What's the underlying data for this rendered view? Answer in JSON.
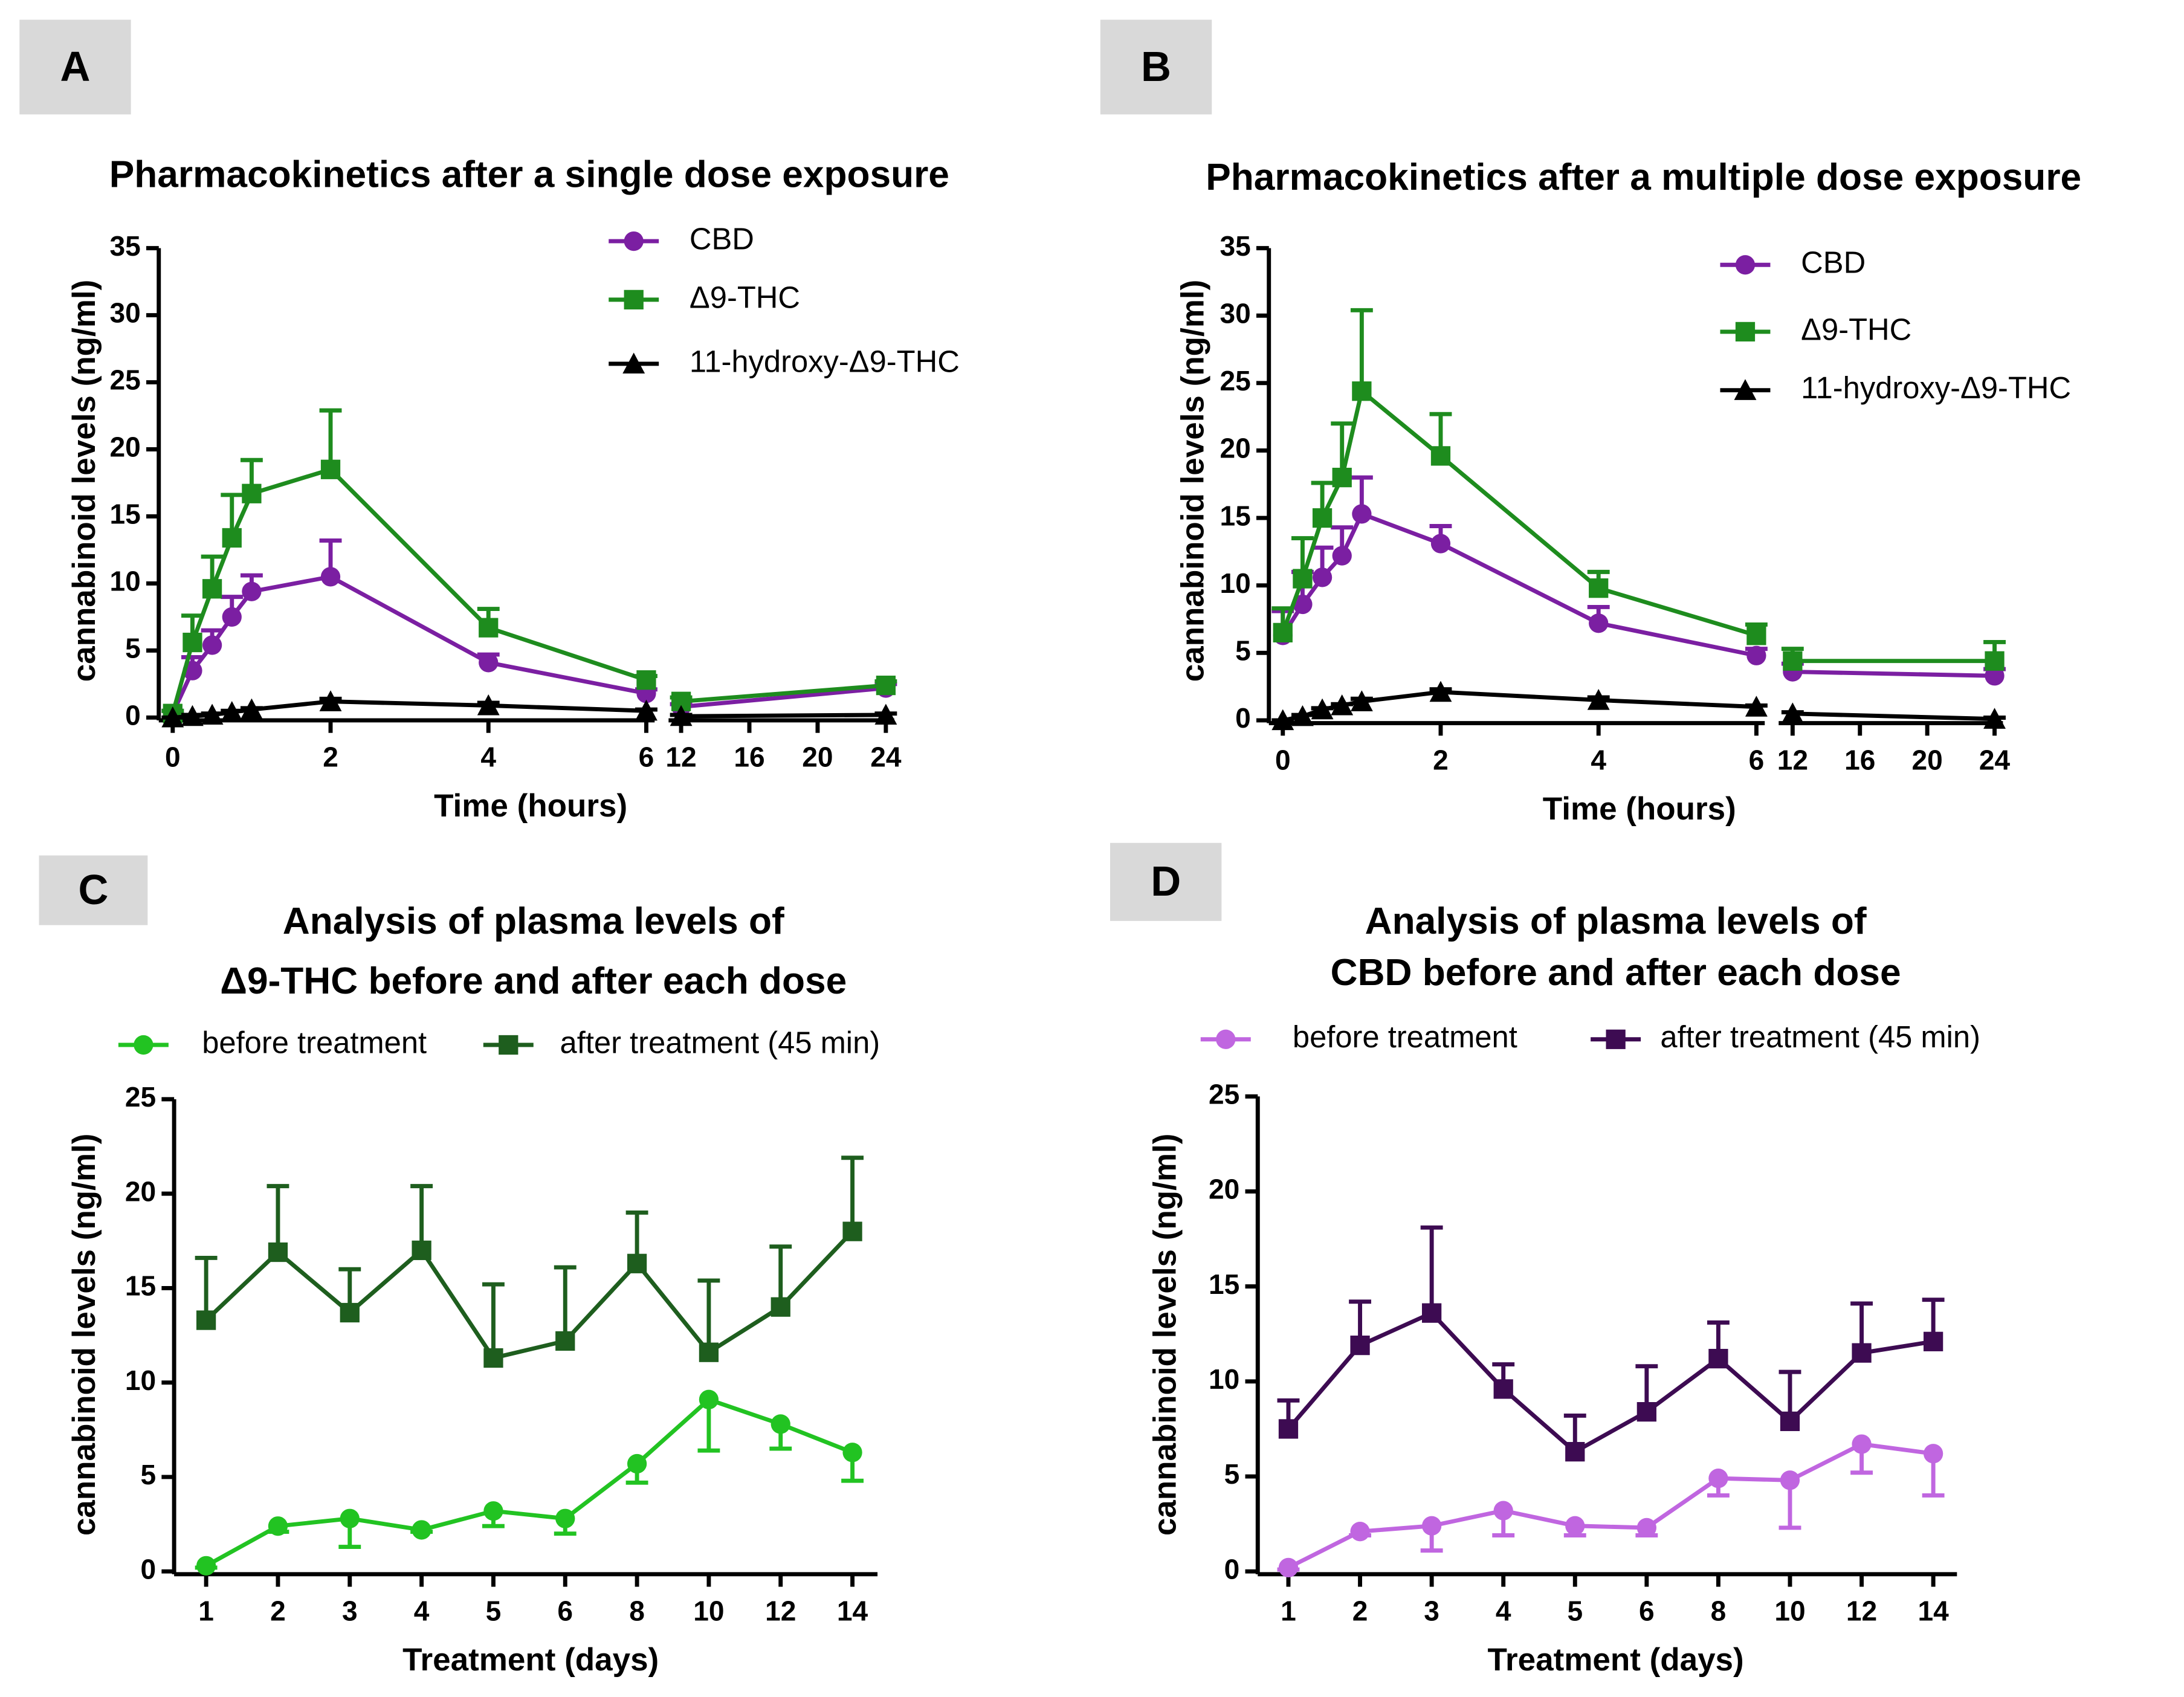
{
  "chart_data": [
    {
      "type": "line",
      "panel": "A",
      "title": "Pharmacokinetics after a single dose exposure",
      "x_label": "Time (hours)",
      "y_label": "cannabinoid levels (ng/ml)",
      "x": [
        0,
        0.25,
        0.5,
        0.75,
        1,
        2,
        4,
        6,
        12,
        24
      ],
      "xsegments": [
        {
          "xlim": [
            0,
            6
          ],
          "xticks": [
            0,
            2,
            4,
            6
          ]
        },
        {
          "xlim": [
            12,
            24
          ],
          "xticks": [
            12,
            16,
            20,
            24
          ]
        }
      ],
      "ylim": [
        0,
        35
      ],
      "yticks": [
        0,
        5,
        10,
        15,
        20,
        25,
        30,
        35
      ],
      "series": [
        {
          "name": "CBD",
          "color": "#7b1fa2",
          "marker": "circle",
          "error_direction": "up",
          "values": [
            0.3,
            3.5,
            5.4,
            7.5,
            9.4,
            10.5,
            4.1,
            1.8,
            0.8,
            2.2
          ],
          "errors": [
            0.2,
            1.0,
            1.1,
            1.5,
            1.2,
            2.7,
            0.6,
            0.3,
            0.2,
            0.3
          ]
        },
        {
          "name": "Δ9-THC",
          "color": "#1e8c1e",
          "marker": "square",
          "error_direction": "up",
          "values": [
            0.3,
            5.6,
            9.6,
            13.4,
            16.7,
            18.5,
            6.7,
            2.8,
            1.2,
            2.4
          ],
          "errors": [
            0.2,
            2.0,
            2.4,
            3.2,
            2.5,
            4.4,
            1.4,
            0.3,
            0.3,
            0.3
          ]
        },
        {
          "name": "11-hydroxy-Δ9-THC",
          "color": "#000000",
          "marker": "triangle",
          "error_direction": "up",
          "values": [
            0,
            0.1,
            0.2,
            0.4,
            0.6,
            1.2,
            0.9,
            0.5,
            0.1,
            0.2
          ],
          "errors": [
            0,
            0.1,
            0.1,
            0.1,
            0.1,
            0.2,
            0.2,
            0.1,
            0.1,
            0.1
          ]
        }
      ]
    },
    {
      "type": "line",
      "panel": "B",
      "title": "Pharmacokinetics after a multiple dose exposure",
      "x_label": "Time (hours)",
      "y_label": "cannabinoid levels (ng/ml)",
      "x": [
        0,
        0.25,
        0.5,
        0.75,
        1,
        2,
        4,
        6,
        12,
        24
      ],
      "xsegments": [
        {
          "xlim": [
            0,
            6
          ],
          "xticks": [
            0,
            2,
            4,
            6
          ]
        },
        {
          "xlim": [
            12,
            24
          ],
          "xticks": [
            12,
            16,
            20,
            24
          ]
        }
      ],
      "ylim": [
        0,
        35
      ],
      "yticks": [
        0,
        5,
        10,
        15,
        20,
        25,
        30,
        35
      ],
      "series": [
        {
          "name": "CBD",
          "color": "#7b1fa2",
          "marker": "circle",
          "error_direction": "up",
          "values": [
            6.3,
            8.6,
            10.6,
            12.2,
            15.3,
            13.1,
            7.2,
            4.8,
            3.6,
            3.3
          ],
          "errors": [
            1.8,
            2.4,
            2.2,
            2.1,
            2.7,
            1.3,
            1.2,
            0.5,
            0.6,
            0.5
          ]
        },
        {
          "name": "Δ9-THC",
          "color": "#1e8c1e",
          "marker": "square",
          "error_direction": "up",
          "values": [
            6.5,
            10.5,
            15.0,
            18.0,
            24.4,
            19.6,
            9.8,
            6.3,
            4.4,
            4.4
          ],
          "errors": [
            1.8,
            3.0,
            2.6,
            4.0,
            6.0,
            3.1,
            1.2,
            0.8,
            0.9,
            1.4
          ]
        },
        {
          "name": "11-hydroxy-Δ9-THC",
          "color": "#000000",
          "marker": "triangle",
          "error_direction": "up",
          "values": [
            0,
            0.3,
            0.8,
            1.1,
            1.4,
            2.1,
            1.5,
            1.0,
            0.5,
            0.1
          ],
          "errors": [
            0,
            0.1,
            0.1,
            0.1,
            0.2,
            0.2,
            0.2,
            0.1,
            0.1,
            0.1
          ]
        }
      ]
    },
    {
      "type": "line",
      "panel": "C",
      "title": [
        "Analysis of plasma levels of",
        "Δ9-THC before and after each dose"
      ],
      "x_label": "Treatment (days)",
      "y_label": "cannabinoid levels (ng/ml)",
      "categories": [
        "1",
        "2",
        "3",
        "4",
        "5",
        "6",
        "8",
        "10",
        "12",
        "14"
      ],
      "ylim": [
        0,
        25
      ],
      "yticks": [
        0,
        5,
        10,
        15,
        20,
        25
      ],
      "series": [
        {
          "name": "before treatment",
          "color": "#22c322",
          "marker": "circle",
          "error_direction": "down",
          "values": [
            0.3,
            2.4,
            2.8,
            2.2,
            3.2,
            2.8,
            5.7,
            9.1,
            7.8,
            6.3
          ],
          "errors": [
            0.1,
            0.3,
            1.5,
            0.1,
            0.8,
            0.8,
            1.0,
            2.7,
            1.3,
            1.5
          ]
        },
        {
          "name": "after treatment (45 min)",
          "color": "#1e5e1e",
          "marker": "square",
          "error_direction": "up",
          "values": [
            13.3,
            16.9,
            13.7,
            17.0,
            11.3,
            12.2,
            16.3,
            11.6,
            14.0,
            18.0
          ],
          "errors": [
            3.3,
            3.5,
            2.3,
            3.4,
            3.9,
            3.9,
            2.7,
            3.8,
            3.2,
            3.9
          ]
        }
      ]
    },
    {
      "type": "line",
      "panel": "D",
      "title": [
        "Analysis of plasma levels of",
        "CBD before and after each dose"
      ],
      "x_label": "Treatment (days)",
      "y_label": "cannabinoid levels (ng/ml)",
      "categories": [
        "1",
        "2",
        "3",
        "4",
        "5",
        "6",
        "8",
        "10",
        "12",
        "14"
      ],
      "ylim": [
        0,
        25
      ],
      "yticks": [
        0,
        5,
        10,
        15,
        20,
        25
      ],
      "series": [
        {
          "name": "before treatment",
          "color": "#c066e0",
          "marker": "circle",
          "error_direction": "down",
          "values": [
            0.2,
            2.1,
            2.4,
            3.2,
            2.4,
            2.3,
            4.9,
            4.8,
            6.7,
            6.2
          ],
          "errors": [
            0.1,
            0.2,
            1.3,
            1.3,
            0.5,
            0.4,
            0.9,
            2.5,
            1.5,
            2.2
          ]
        },
        {
          "name": "after treatment (45 min)",
          "color": "#3d0b52",
          "marker": "square",
          "error_direction": "up",
          "values": [
            7.5,
            11.9,
            13.6,
            9.6,
            6.3,
            8.4,
            11.2,
            7.9,
            11.5,
            12.1
          ],
          "errors": [
            1.5,
            2.3,
            4.5,
            1.3,
            1.9,
            2.4,
            1.9,
            2.6,
            2.6,
            2.2
          ]
        }
      ]
    }
  ]
}
